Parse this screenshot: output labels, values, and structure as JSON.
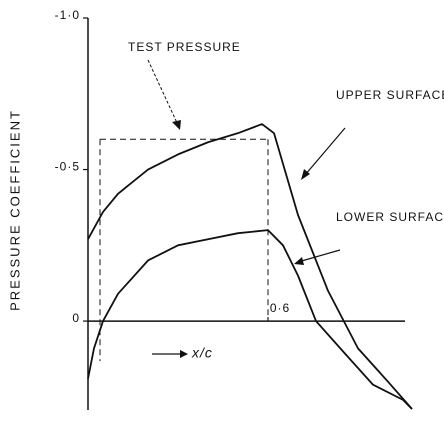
{
  "chart_data": {
    "type": "line",
    "y_label": "PRESSURE COEFFICIENT",
    "x_label": "x/c",
    "xlim": [
      0,
      1.1
    ],
    "xticks": [
      {
        "value": 0.6,
        "label": "0·6"
      }
    ],
    "ylim": [
      0.3,
      -1.0
    ],
    "yticks": [
      {
        "value": -1.0,
        "label": "-1·0"
      },
      {
        "value": -0.5,
        "label": "-0·5"
      },
      0
    ],
    "series": [
      {
        "name": "UPPER SURFACE.",
        "color": "#111111",
        "x": [
          0,
          0.05,
          0.1,
          0.2,
          0.3,
          0.4,
          0.5,
          0.58,
          0.62,
          0.7,
          0.8,
          0.9,
          1.0,
          1.08
        ],
        "values": [
          -0.27,
          -0.36,
          -0.42,
          -0.5,
          -0.55,
          -0.59,
          -0.62,
          -0.65,
          -0.62,
          -0.35,
          -0.1,
          0.09,
          0.2,
          0.29
        ]
      },
      {
        "name": "LOWER SURFACE",
        "color": "#111111",
        "x": [
          0,
          0.02,
          0.05,
          0.1,
          0.2,
          0.3,
          0.4,
          0.5,
          0.6,
          0.65,
          0.7,
          0.76,
          0.85,
          0.95,
          1.05,
          1.08
        ],
        "values": [
          0.19,
          0.09,
          0,
          -0.09,
          -0.2,
          -0.25,
          -0.27,
          -0.29,
          -0.3,
          -0.25,
          -0.15,
          0,
          0.1,
          0.21,
          0.26,
          0.29
        ]
      }
    ],
    "test_pressure": {
      "label": "TEST PRESSURE",
      "x": [
        0.04,
        0.6
      ],
      "value": -0.6
    }
  }
}
